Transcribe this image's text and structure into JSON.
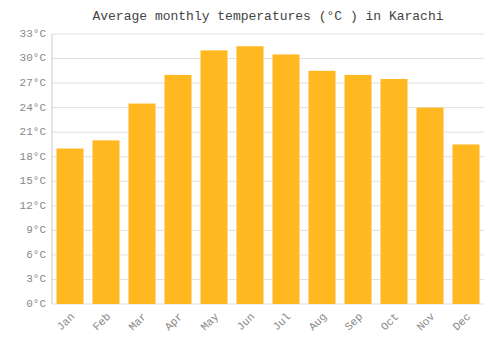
{
  "chart_data": {
    "type": "bar",
    "title": "Average monthly temperatures (°C ) in Karachi",
    "categories": [
      "Jan",
      "Feb",
      "Mar",
      "Apr",
      "May",
      "Jun",
      "Jul",
      "Aug",
      "Sep",
      "Oct",
      "Nov",
      "Dec"
    ],
    "values": [
      19,
      20,
      24.5,
      28,
      31,
      31.5,
      30.5,
      28.5,
      28,
      27.5,
      24,
      19.5
    ],
    "color": "#FFB820",
    "ylim": [
      0,
      33
    ],
    "yticks": [
      {
        "value": 0,
        "label": "0°C"
      },
      {
        "value": 3,
        "label": "3°C"
      },
      {
        "value": 6,
        "label": "6°C"
      },
      {
        "value": 9,
        "label": "9°C"
      },
      {
        "value": 12,
        "label": "12°C"
      },
      {
        "value": 15,
        "label": "15°C"
      },
      {
        "value": 18,
        "label": "18°C"
      },
      {
        "value": 21,
        "label": "21°C"
      },
      {
        "value": 24,
        "label": "24°C"
      },
      {
        "value": 27,
        "label": "27°C"
      },
      {
        "value": 30,
        "label": "30°C"
      },
      {
        "value": 33,
        "label": "33°C"
      }
    ],
    "grid": true
  }
}
